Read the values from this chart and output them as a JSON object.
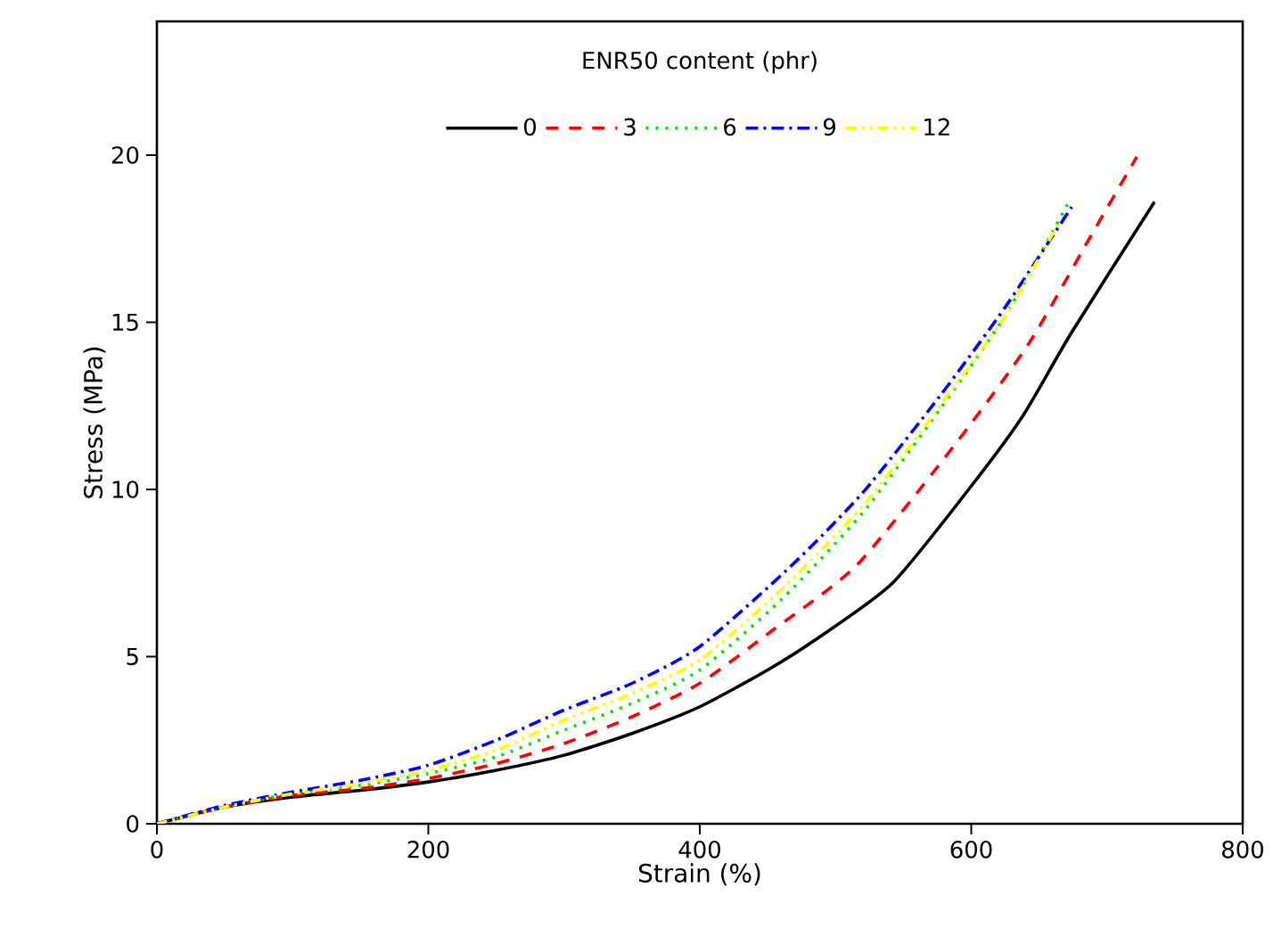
{
  "chart_data": {
    "type": "line",
    "xlabel": "Strain (%)",
    "ylabel": "Stress (MPa)",
    "legend_title": "ENR50 content (phr)",
    "legend": "top",
    "grid": false,
    "xlim": [
      0,
      800
    ],
    "ylim": [
      0,
      24
    ],
    "xticks": [
      0,
      200,
      400,
      600,
      800
    ],
    "yticks": [
      0,
      5,
      10,
      15,
      20
    ],
    "series": [
      {
        "name": "0",
        "color": "#000000",
        "line_style": "solid",
        "x": [
          0,
          50,
          100,
          150,
          200,
          250,
          300,
          350,
          400,
          450,
          485,
          542,
          600,
          638,
          674,
          735
        ],
        "values": [
          0,
          0.5,
          0.8,
          1.0,
          1.25,
          1.6,
          2.05,
          2.7,
          3.5,
          4.6,
          5.5,
          7.2,
          10.1,
          12.2,
          14.7,
          18.6
        ]
      },
      {
        "name": "3",
        "color": "#ff0000",
        "line_style": "dashed",
        "x": [
          0,
          50,
          100,
          150,
          200,
          250,
          300,
          350,
          400,
          454,
          516,
          591,
          643,
          687,
          722
        ],
        "values": [
          0,
          0.5,
          0.85,
          1.05,
          1.35,
          1.8,
          2.4,
          3.2,
          4.2,
          5.8,
          7.75,
          11.5,
          14.4,
          17.5,
          19.95
        ]
      },
      {
        "name": "6",
        "color": "#00e000",
        "line_style": "dotted",
        "x": [
          0,
          50,
          100,
          150,
          200,
          250,
          300,
          350,
          400,
          460,
          520,
          577,
          625,
          672
        ],
        "values": [
          0,
          0.5,
          0.9,
          1.15,
          1.5,
          2.0,
          2.8,
          3.6,
          4.6,
          6.7,
          9.3,
          12.4,
          15.2,
          18.6
        ]
      },
      {
        "name": "9",
        "color": "#0000ff",
        "line_style": "dashdot",
        "x": [
          0,
          50,
          100,
          150,
          200,
          250,
          300,
          350,
          400,
          467,
          520,
          577,
          625,
          674
        ],
        "values": [
          0,
          0.55,
          0.95,
          1.3,
          1.75,
          2.5,
          3.4,
          4.2,
          5.3,
          7.7,
          9.9,
          12.8,
          15.45,
          18.45
        ]
      },
      {
        "name": "12",
        "color": "#ffff00",
        "line_style": "dashdotdot",
        "x": [
          0,
          50,
          100,
          150,
          200,
          250,
          300,
          350,
          400,
          460,
          520,
          577,
          625,
          665
        ],
        "values": [
          0,
          0.5,
          0.9,
          1.2,
          1.6,
          2.2,
          3.1,
          3.9,
          4.9,
          7.0,
          9.5,
          12.5,
          15.2,
          18.0
        ]
      }
    ]
  }
}
